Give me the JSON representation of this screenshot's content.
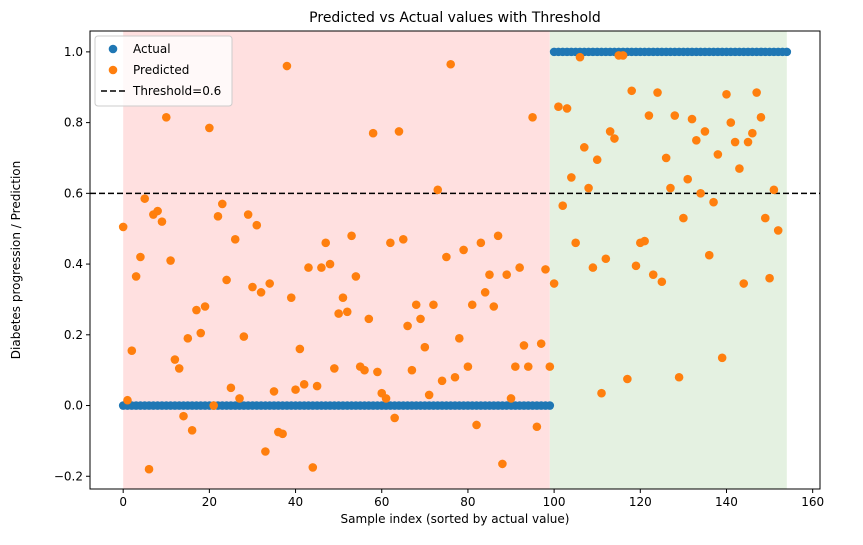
{
  "chart_data": {
    "type": "scatter",
    "title": "Predicted vs Actual values with Threshold",
    "xlabel": "Sample index (sorted by actual value)",
    "ylabel": "Diabetes progression / Prediction",
    "xlim": [
      -7.7,
      161.7
    ],
    "ylim": [
      -0.236,
      1.059
    ],
    "xticks": [
      0,
      20,
      40,
      60,
      80,
      100,
      120,
      140,
      160
    ],
    "yticks": [
      -0.2,
      0.0,
      0.2,
      0.4,
      0.6,
      0.8,
      1.0
    ],
    "xtick_labels": [
      "0",
      "20",
      "40",
      "60",
      "80",
      "100",
      "120",
      "140",
      "160"
    ],
    "ytick_labels": [
      "−0.2",
      "0.0",
      "0.2",
      "0.4",
      "0.6",
      "0.8",
      "1.0"
    ],
    "grid": false,
    "legend_position": "upper-left",
    "threshold": {
      "value": 0.6,
      "label": "Threshold=0.6",
      "color": "#000000",
      "style": "dashed"
    },
    "regions": [
      {
        "x_range": [
          0,
          99
        ],
        "color": "#ffe0e0"
      },
      {
        "x_range": [
          99,
          154
        ],
        "color": "#e4f1e1"
      }
    ],
    "series": [
      {
        "name": "Actual",
        "color": "#1f77b4",
        "x_start": 0,
        "values": [
          0,
          0,
          0,
          0,
          0,
          0,
          0,
          0,
          0,
          0,
          0,
          0,
          0,
          0,
          0,
          0,
          0,
          0,
          0,
          0,
          0,
          0,
          0,
          0,
          0,
          0,
          0,
          0,
          0,
          0,
          0,
          0,
          0,
          0,
          0,
          0,
          0,
          0,
          0,
          0,
          0,
          0,
          0,
          0,
          0,
          0,
          0,
          0,
          0,
          0,
          0,
          0,
          0,
          0,
          0,
          0,
          0,
          0,
          0,
          0,
          0,
          0,
          0,
          0,
          0,
          0,
          0,
          0,
          0,
          0,
          0,
          0,
          0,
          0,
          0,
          0,
          0,
          0,
          0,
          0,
          0,
          0,
          0,
          0,
          0,
          0,
          0,
          0,
          0,
          0,
          0,
          0,
          0,
          0,
          0,
          0,
          0,
          0,
          0,
          0,
          1,
          1,
          1,
          1,
          1,
          1,
          1,
          1,
          1,
          1,
          1,
          1,
          1,
          1,
          1,
          1,
          1,
          1,
          1,
          1,
          1,
          1,
          1,
          1,
          1,
          1,
          1,
          1,
          1,
          1,
          1,
          1,
          1,
          1,
          1,
          1,
          1,
          1,
          1,
          1,
          1,
          1,
          1,
          1,
          1,
          1,
          1,
          1,
          1,
          1,
          1,
          1,
          1,
          1,
          1
        ]
      },
      {
        "name": "Predicted",
        "color": "#ff7f0e",
        "x_start": 0,
        "values": [
          0.505,
          0.015,
          0.155,
          0.365,
          0.42,
          0.585,
          -0.18,
          0.54,
          0.55,
          0.52,
          0.815,
          0.41,
          0.13,
          0.105,
          -0.03,
          0.19,
          -0.07,
          0.27,
          0.205,
          0.28,
          0.785,
          0.0,
          0.535,
          0.57,
          0.355,
          0.05,
          0.47,
          0.02,
          0.195,
          0.54,
          0.335,
          0.51,
          0.32,
          -0.13,
          0.345,
          0.04,
          -0.075,
          -0.08,
          0.96,
          0.305,
          0.045,
          0.16,
          0.06,
          0.39,
          -0.175,
          0.055,
          0.39,
          0.46,
          0.4,
          0.105,
          0.26,
          0.305,
          0.265,
          0.48,
          0.365,
          0.11,
          0.1,
          0.245,
          0.77,
          0.095,
          0.035,
          0.02,
          0.46,
          -0.035,
          0.775,
          0.47,
          0.225,
          0.1,
          0.285,
          0.245,
          0.165,
          0.03,
          0.285,
          0.61,
          0.07,
          0.42,
          0.965,
          0.08,
          0.19,
          0.44,
          0.11,
          0.285,
          -0.055,
          0.46,
          0.32,
          0.37,
          0.28,
          0.48,
          -0.165,
          0.37,
          0.02,
          0.11,
          0.39,
          0.17,
          0.11,
          0.815,
          -0.06,
          0.175,
          0.385,
          0.11,
          0.345,
          0.845,
          0.565,
          0.84,
          0.645,
          0.46,
          0.985,
          0.73,
          0.615,
          0.39,
          0.695,
          0.035,
          0.415,
          0.775,
          0.755,
          0.99,
          0.99,
          0.075,
          0.89,
          0.395,
          0.46,
          0.465,
          0.82,
          0.37,
          0.885,
          0.35,
          0.7,
          0.615,
          0.82,
          0.08,
          0.53,
          0.64,
          0.81,
          0.75,
          0.6,
          0.775,
          0.425,
          0.575,
          0.71,
          0.135,
          0.88,
          0.8,
          0.745,
          0.67,
          0.345,
          0.745,
          0.77,
          0.885,
          0.815,
          0.53,
          0.36,
          0.61,
          0.495
        ]
      }
    ]
  }
}
